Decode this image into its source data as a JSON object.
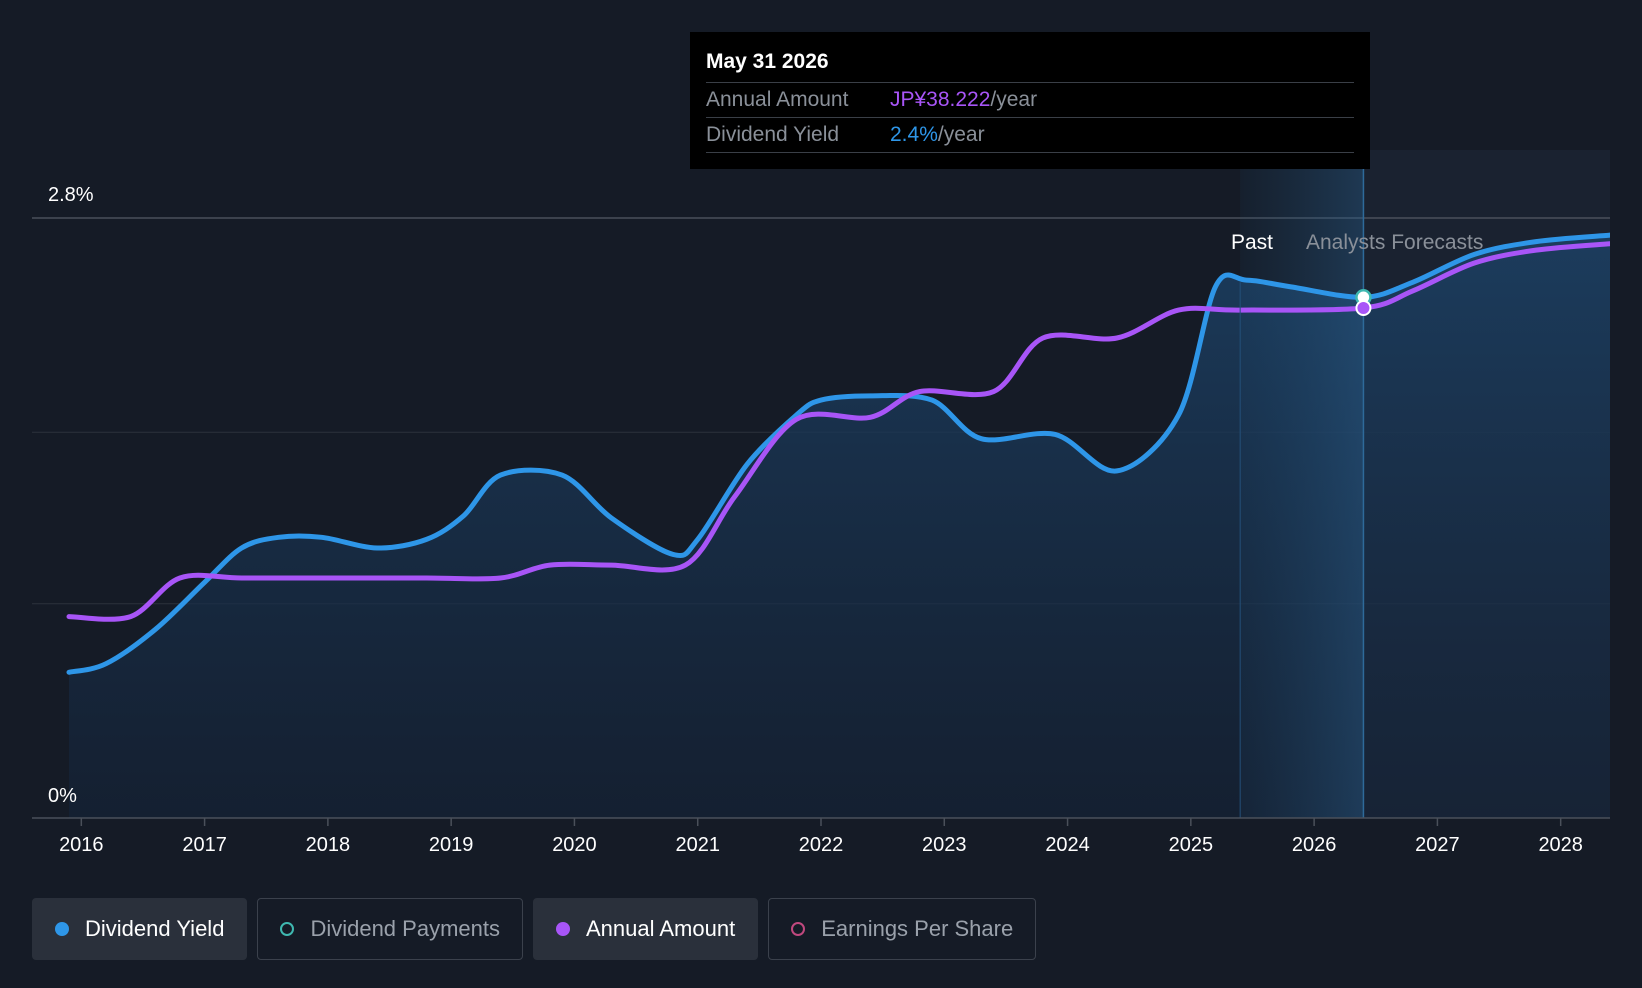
{
  "chart_data": {
    "type": "line",
    "y_axis": {
      "top_label": "2.8%",
      "bottom_label": "0%",
      "ylim": [
        0,
        2.8
      ],
      "gridlines": [
        0,
        1.0,
        1.8,
        2.8
      ]
    },
    "x_axis": {
      "ticks": [
        "2016",
        "2017",
        "2018",
        "2019",
        "2020",
        "2021",
        "2022",
        "2023",
        "2024",
        "2025",
        "2026",
        "2027",
        "2028"
      ],
      "xlim": [
        2015.6,
        2028.4
      ]
    },
    "regions": {
      "past_label": "Past",
      "forecast_label": "Analysts Forecasts",
      "forecast_start": 2025.4,
      "cursor_x": 2026.4
    },
    "series": [
      {
        "name": "Dividend Yield",
        "color": "#2e96e8",
        "fill": true,
        "points": [
          [
            2015.9,
            0.68
          ],
          [
            2016.2,
            0.72
          ],
          [
            2016.6,
            0.88
          ],
          [
            2017.0,
            1.1
          ],
          [
            2017.3,
            1.26
          ],
          [
            2017.6,
            1.31
          ],
          [
            2017.95,
            1.31
          ],
          [
            2018.4,
            1.26
          ],
          [
            2018.8,
            1.3
          ],
          [
            2019.1,
            1.41
          ],
          [
            2019.4,
            1.6
          ],
          [
            2019.9,
            1.6
          ],
          [
            2020.3,
            1.4
          ],
          [
            2020.8,
            1.23
          ],
          [
            2021.0,
            1.3
          ],
          [
            2021.4,
            1.65
          ],
          [
            2021.8,
            1.88
          ],
          [
            2022.0,
            1.95
          ],
          [
            2022.4,
            1.97
          ],
          [
            2022.9,
            1.95
          ],
          [
            2023.3,
            1.77
          ],
          [
            2023.9,
            1.79
          ],
          [
            2024.4,
            1.62
          ],
          [
            2024.9,
            1.88
          ],
          [
            2025.2,
            2.48
          ],
          [
            2025.45,
            2.51
          ],
          [
            2025.8,
            2.48
          ],
          [
            2026.4,
            2.43
          ],
          [
            2026.8,
            2.5
          ],
          [
            2027.3,
            2.63
          ],
          [
            2027.8,
            2.69
          ],
          [
            2028.4,
            2.72
          ]
        ]
      },
      {
        "name": "Annual Amount",
        "color": "#a855f7",
        "fill": false,
        "points": [
          [
            2015.9,
            0.94
          ],
          [
            2016.4,
            0.94
          ],
          [
            2016.8,
            1.12
          ],
          [
            2017.3,
            1.12
          ],
          [
            2018.0,
            1.12
          ],
          [
            2018.8,
            1.12
          ],
          [
            2019.4,
            1.12
          ],
          [
            2019.8,
            1.18
          ],
          [
            2020.3,
            1.18
          ],
          [
            2020.9,
            1.18
          ],
          [
            2021.3,
            1.5
          ],
          [
            2021.8,
            1.86
          ],
          [
            2022.4,
            1.87
          ],
          [
            2022.8,
            1.99
          ],
          [
            2023.4,
            1.99
          ],
          [
            2023.8,
            2.24
          ],
          [
            2024.4,
            2.24
          ],
          [
            2024.9,
            2.37
          ],
          [
            2025.4,
            2.37
          ],
          [
            2026.4,
            2.38
          ],
          [
            2026.8,
            2.46
          ],
          [
            2027.3,
            2.59
          ],
          [
            2027.8,
            2.65
          ],
          [
            2028.4,
            2.68
          ]
        ]
      }
    ],
    "tooltip": {
      "date": "May 31 2026",
      "rows": [
        {
          "label": "Annual Amount",
          "value": "JP¥38.222",
          "unit": "/year"
        },
        {
          "label": "Dividend Yield",
          "value": "2.4%",
          "unit": "/year"
        }
      ]
    }
  },
  "legend": [
    {
      "label": "Dividend Yield",
      "color": "#2e96e8",
      "state": "active",
      "filled": true
    },
    {
      "label": "Dividend Payments",
      "color": "#3fb8b0",
      "state": "inactive",
      "filled": false
    },
    {
      "label": "Annual Amount",
      "color": "#a855f7",
      "state": "active",
      "filled": true
    },
    {
      "label": "Earnings Per Share",
      "color": "#c0487e",
      "state": "inactive",
      "filled": false
    }
  ]
}
